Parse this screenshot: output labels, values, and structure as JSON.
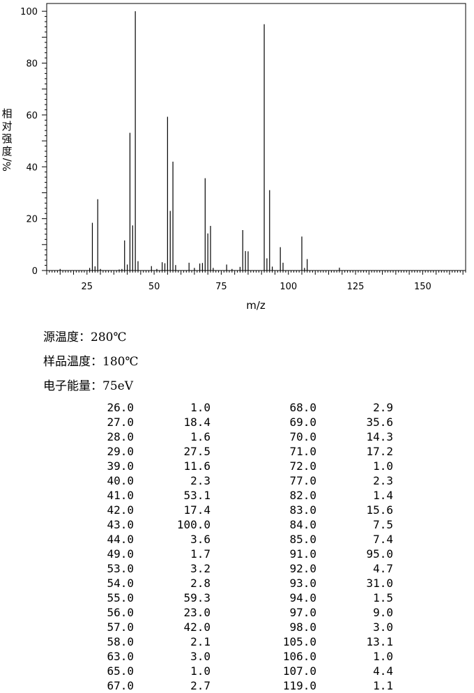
{
  "chart_data": {
    "type": "bar",
    "xlabel": "m/z",
    "ylabel": [
      "相",
      "对",
      "强",
      "度",
      "%/"
    ],
    "xlim": [
      10,
      166
    ],
    "ylim": [
      0,
      103
    ],
    "x_ticks": [
      25,
      50,
      75,
      100,
      125,
      150
    ],
    "y_ticks": [
      0,
      20,
      40,
      60,
      80,
      100
    ],
    "grid": false,
    "peaks": [
      {
        "mz": 15.0,
        "i": 0.6
      },
      {
        "mz": 26.0,
        "i": 1.0
      },
      {
        "mz": 27.0,
        "i": 18.4
      },
      {
        "mz": 28.0,
        "i": 1.6
      },
      {
        "mz": 29.0,
        "i": 27.5
      },
      {
        "mz": 30.0,
        "i": 0.6
      },
      {
        "mz": 37.0,
        "i": 0.4
      },
      {
        "mz": 38.0,
        "i": 0.6
      },
      {
        "mz": 39.0,
        "i": 11.6
      },
      {
        "mz": 40.0,
        "i": 2.3
      },
      {
        "mz": 41.0,
        "i": 53.1
      },
      {
        "mz": 42.0,
        "i": 17.4
      },
      {
        "mz": 43.0,
        "i": 100.0
      },
      {
        "mz": 44.0,
        "i": 3.6
      },
      {
        "mz": 49.0,
        "i": 1.7
      },
      {
        "mz": 51.0,
        "i": 0.6
      },
      {
        "mz": 53.0,
        "i": 3.2
      },
      {
        "mz": 54.0,
        "i": 2.8
      },
      {
        "mz": 55.0,
        "i": 59.3
      },
      {
        "mz": 56.0,
        "i": 23.0
      },
      {
        "mz": 57.0,
        "i": 42.0
      },
      {
        "mz": 58.0,
        "i": 2.1
      },
      {
        "mz": 63.0,
        "i": 3.0
      },
      {
        "mz": 65.0,
        "i": 1.0
      },
      {
        "mz": 67.0,
        "i": 2.7
      },
      {
        "mz": 68.0,
        "i": 2.9
      },
      {
        "mz": 69.0,
        "i": 35.6
      },
      {
        "mz": 70.0,
        "i": 14.3
      },
      {
        "mz": 71.0,
        "i": 17.2
      },
      {
        "mz": 72.0,
        "i": 1.0
      },
      {
        "mz": 77.0,
        "i": 2.3
      },
      {
        "mz": 79.0,
        "i": 0.6
      },
      {
        "mz": 82.0,
        "i": 1.4
      },
      {
        "mz": 83.0,
        "i": 15.6
      },
      {
        "mz": 84.0,
        "i": 7.5
      },
      {
        "mz": 85.0,
        "i": 7.4
      },
      {
        "mz": 91.0,
        "i": 95.0
      },
      {
        "mz": 92.0,
        "i": 4.7
      },
      {
        "mz": 93.0,
        "i": 31.0
      },
      {
        "mz": 94.0,
        "i": 1.5
      },
      {
        "mz": 97.0,
        "i": 9.0
      },
      {
        "mz": 98.0,
        "i": 3.0
      },
      {
        "mz": 105.0,
        "i": 13.1
      },
      {
        "mz": 106.0,
        "i": 1.0
      },
      {
        "mz": 107.0,
        "i": 4.4
      },
      {
        "mz": 119.0,
        "i": 1.1
      }
    ]
  },
  "conditions": [
    {
      "label": "源温度：",
      "value": "280℃"
    },
    {
      "label": "样品温度：",
      "value": "180℃"
    },
    {
      "label": "电子能量：",
      "value": "75eV"
    }
  ],
  "peak_table": [
    [
      "26.0",
      "1.0",
      "68.0",
      "2.9"
    ],
    [
      "27.0",
      "18.4",
      "69.0",
      "35.6"
    ],
    [
      "28.0",
      "1.6",
      "70.0",
      "14.3"
    ],
    [
      "29.0",
      "27.5",
      "71.0",
      "17.2"
    ],
    [
      "39.0",
      "11.6",
      "72.0",
      "1.0"
    ],
    [
      "40.0",
      "2.3",
      "77.0",
      "2.3"
    ],
    [
      "41.0",
      "53.1",
      "82.0",
      "1.4"
    ],
    [
      "42.0",
      "17.4",
      "83.0",
      "15.6"
    ],
    [
      "43.0",
      "100.0",
      "84.0",
      "7.5"
    ],
    [
      "44.0",
      "3.6",
      "85.0",
      "7.4"
    ],
    [
      "49.0",
      "1.7",
      "91.0",
      "95.0"
    ],
    [
      "53.0",
      "3.2",
      "92.0",
      "4.7"
    ],
    [
      "54.0",
      "2.8",
      "93.0",
      "31.0"
    ],
    [
      "55.0",
      "59.3",
      "94.0",
      "1.5"
    ],
    [
      "56.0",
      "23.0",
      "97.0",
      "9.0"
    ],
    [
      "57.0",
      "42.0",
      "98.0",
      "3.0"
    ],
    [
      "58.0",
      "2.1",
      "105.0",
      "13.1"
    ],
    [
      "63.0",
      "3.0",
      "106.0",
      "1.0"
    ],
    [
      "65.0",
      "1.0",
      "107.0",
      "4.4"
    ],
    [
      "67.0",
      "2.7",
      "119.0",
      "1.1"
    ]
  ]
}
